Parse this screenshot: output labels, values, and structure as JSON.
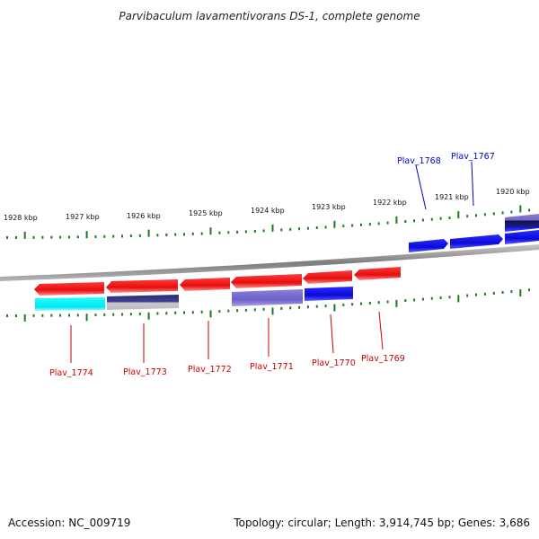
{
  "header": {
    "title": "Parvibaculum lavamentivorans DS-1, complete genome"
  },
  "footer": {
    "accession": "Accession: NC_009719",
    "summary": "Topology: circular; Length: 3,914,745 bp; Genes: 3,686"
  },
  "colors": {
    "forward": "#1010e8",
    "reverse": "#ee1111",
    "tick": "#1e7a1e",
    "backbone": "#8a8a8a"
  },
  "scale": {
    "unit": "kbp",
    "labels": [
      "1928 kbp",
      "1927 kbp",
      "1926 kbp",
      "1925 kbp",
      "1924 kbp",
      "1923 kbp",
      "1922 kbp",
      "1921 kbp",
      "1920 kbp"
    ]
  },
  "genes": {
    "reverse": [
      "Plav_1774",
      "Plav_1773",
      "Plav_1772",
      "Plav_1771",
      "Plav_1770",
      "Plav_1769"
    ],
    "forward": [
      "Plav_1768",
      "Plav_1767"
    ]
  }
}
